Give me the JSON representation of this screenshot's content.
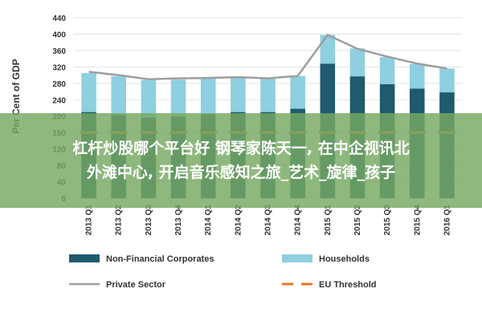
{
  "chart_data": {
    "type": "bar",
    "ylabel": "Per Cent of GDP",
    "ylim": [
      0,
      440
    ],
    "yticks": [
      0,
      40,
      80,
      120,
      160,
      200,
      240,
      280,
      320,
      360,
      400,
      440
    ],
    "grid": true,
    "stacked": true,
    "legend_position": "bottom",
    "categories": [
      "2013 Q1",
      "2013 Q2",
      "2013 Q3",
      "2013 Q4",
      "2014 Q1",
      "2014 Q2",
      "2014 Q3",
      "2014 Q4",
      "2015 Q1",
      "2015 Q2",
      "2015 Q3",
      "2015 Q4",
      "2016 Q1"
    ],
    "series": [
      {
        "name": "Non-Financial Corporates",
        "kind": "bar",
        "color": "#1f5a6e",
        "values": [
          210,
          203,
          197,
          199,
          205,
          210,
          210,
          218,
          328,
          297,
          278,
          267,
          258
        ]
      },
      {
        "name": "Households",
        "kind": "bar",
        "color": "#8ecfe0",
        "values": [
          95,
          94,
          91,
          90,
          87,
          85,
          82,
          80,
          70,
          68,
          66,
          60,
          58
        ]
      },
      {
        "name": "Private Sector",
        "kind": "line",
        "color": "#9e9e9e",
        "values": [
          308,
          300,
          290,
          292,
          293,
          295,
          292,
          298,
          398,
          364,
          345,
          328,
          316
        ]
      },
      {
        "name": "EU Threshold",
        "kind": "dashed-line",
        "color": "#e8742a",
        "values": [
          160,
          160,
          160,
          160,
          160,
          160,
          160,
          160,
          160,
          160,
          160,
          160,
          160
        ]
      }
    ]
  },
  "overlay": {
    "line1": "杠杆炒股哪个平台好 钢琴家陈天一, 在中企视讯北",
    "line2": "外滩中心, 开启音乐感知之旅_艺术_旋律_孩子"
  }
}
